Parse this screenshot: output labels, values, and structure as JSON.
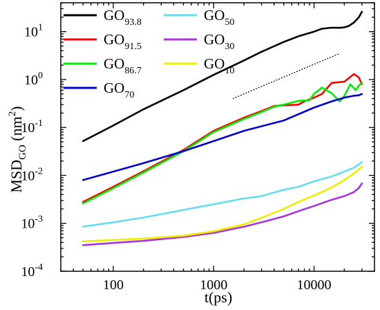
{
  "chart_data": {
    "type": "line",
    "xlabel": "t(ps)",
    "ylabel": {
      "main": "MSD",
      "sub": "GO",
      "unit_open": " (nm",
      "unit_sup": "2",
      "unit_close": ")"
    },
    "xscale": "log",
    "yscale": "log",
    "xlim": [
      30,
      40000
    ],
    "ylim": [
      0.0001,
      40
    ],
    "xticks": [
      {
        "value": 100,
        "label": "100"
      },
      {
        "value": 1000,
        "label": "1000"
      },
      {
        "value": 10000,
        "label": "10000"
      }
    ],
    "yticks": [
      {
        "value": 0.0001,
        "base": "10",
        "exp": "-4"
      },
      {
        "value": 0.001,
        "base": "10",
        "exp": "-3"
      },
      {
        "value": 0.01,
        "base": "10",
        "exp": "-2"
      },
      {
        "value": 0.1,
        "base": "10",
        "exp": "-1"
      },
      {
        "value": 1,
        "base": "10",
        "exp": "0"
      },
      {
        "value": 10,
        "base": "10",
        "exp": "1"
      }
    ],
    "grid": false,
    "legend_position": "top-left",
    "series": [
      {
        "name": "GO",
        "sub": "93.8",
        "color": "#000000",
        "x": [
          50,
          100,
          200,
          500,
          1000,
          2000,
          3000,
          5000,
          7000,
          10000,
          12000,
          15000,
          18000,
          20000,
          22000,
          25000,
          28000,
          30000
        ],
        "y": [
          0.052,
          0.11,
          0.24,
          0.6,
          1.25,
          2.5,
          3.8,
          6.1,
          8.0,
          10.0,
          11.5,
          12.1,
          12.0,
          12.3,
          13.0,
          15.5,
          20.0,
          26.0
        ]
      },
      {
        "name": "GO",
        "sub": "91.5",
        "color": "#ff0000",
        "x": [
          50,
          100,
          200,
          500,
          1000,
          2000,
          3000,
          4000,
          5000,
          7000,
          8000,
          10000,
          12000,
          15000,
          20000,
          25000,
          28000,
          30000
        ],
        "y": [
          0.0028,
          0.0058,
          0.0122,
          0.034,
          0.085,
          0.16,
          0.22,
          0.28,
          0.29,
          0.3,
          0.35,
          0.42,
          0.5,
          0.85,
          0.9,
          1.3,
          1.1,
          0.8
        ]
      },
      {
        "name": "GO",
        "sub": "86.7",
        "color": "#00ee00",
        "x": [
          50,
          100,
          200,
          500,
          1000,
          2000,
          3000,
          4000,
          5000,
          7000,
          9000,
          10000,
          12000,
          15000,
          18000,
          20000,
          23000,
          26000,
          28000,
          30000
        ],
        "y": [
          0.0026,
          0.0054,
          0.0115,
          0.032,
          0.08,
          0.15,
          0.21,
          0.27,
          0.3,
          0.36,
          0.37,
          0.5,
          0.68,
          0.52,
          0.35,
          0.45,
          0.8,
          0.6,
          0.75,
          0.85
        ]
      },
      {
        "name": "GO",
        "sub": "70",
        "color": "#0000cc",
        "x": [
          50,
          100,
          200,
          500,
          1000,
          2000,
          5000,
          10000,
          15000,
          20000,
          25000,
          28000,
          30000
        ],
        "y": [
          0.008,
          0.012,
          0.018,
          0.032,
          0.052,
          0.085,
          0.14,
          0.26,
          0.35,
          0.42,
          0.46,
          0.47,
          0.5
        ]
      },
      {
        "name": "GO",
        "sub": "50",
        "color": "#66ddee",
        "x": [
          50,
          100,
          200,
          500,
          1000,
          2000,
          3000,
          5000,
          7000,
          10000,
          15000,
          20000,
          25000,
          28000,
          30000
        ],
        "y": [
          0.00085,
          0.00105,
          0.00132,
          0.0019,
          0.0025,
          0.0033,
          0.0037,
          0.005,
          0.0058,
          0.0075,
          0.0095,
          0.012,
          0.0145,
          0.017,
          0.019
        ]
      },
      {
        "name": "GO",
        "sub": "30",
        "color": "#aa33dd",
        "x": [
          50,
          100,
          200,
          500,
          1000,
          2000,
          3000,
          5000,
          7000,
          10000,
          15000,
          20000,
          25000,
          28000,
          30000
        ],
        "y": [
          0.00035,
          0.00039,
          0.00043,
          0.00052,
          0.00063,
          0.00085,
          0.00105,
          0.0014,
          0.0018,
          0.0023,
          0.0031,
          0.0037,
          0.0045,
          0.0055,
          0.0068
        ]
      },
      {
        "name": "GO",
        "sub": "10",
        "color": "#eeee00",
        "x": [
          50,
          100,
          200,
          500,
          1000,
          2000,
          3000,
          5000,
          7000,
          10000,
          15000,
          20000,
          25000,
          28000,
          30000
        ],
        "y": [
          0.00042,
          0.00045,
          0.00048,
          0.00055,
          0.00068,
          0.00095,
          0.0013,
          0.002,
          0.0028,
          0.0038,
          0.0056,
          0.008,
          0.011,
          0.0135,
          0.015
        ]
      }
    ],
    "reference_line": {
      "style": "dotted",
      "x": [
        1550,
        18000
      ],
      "y": [
        0.4,
        3.5
      ]
    }
  }
}
